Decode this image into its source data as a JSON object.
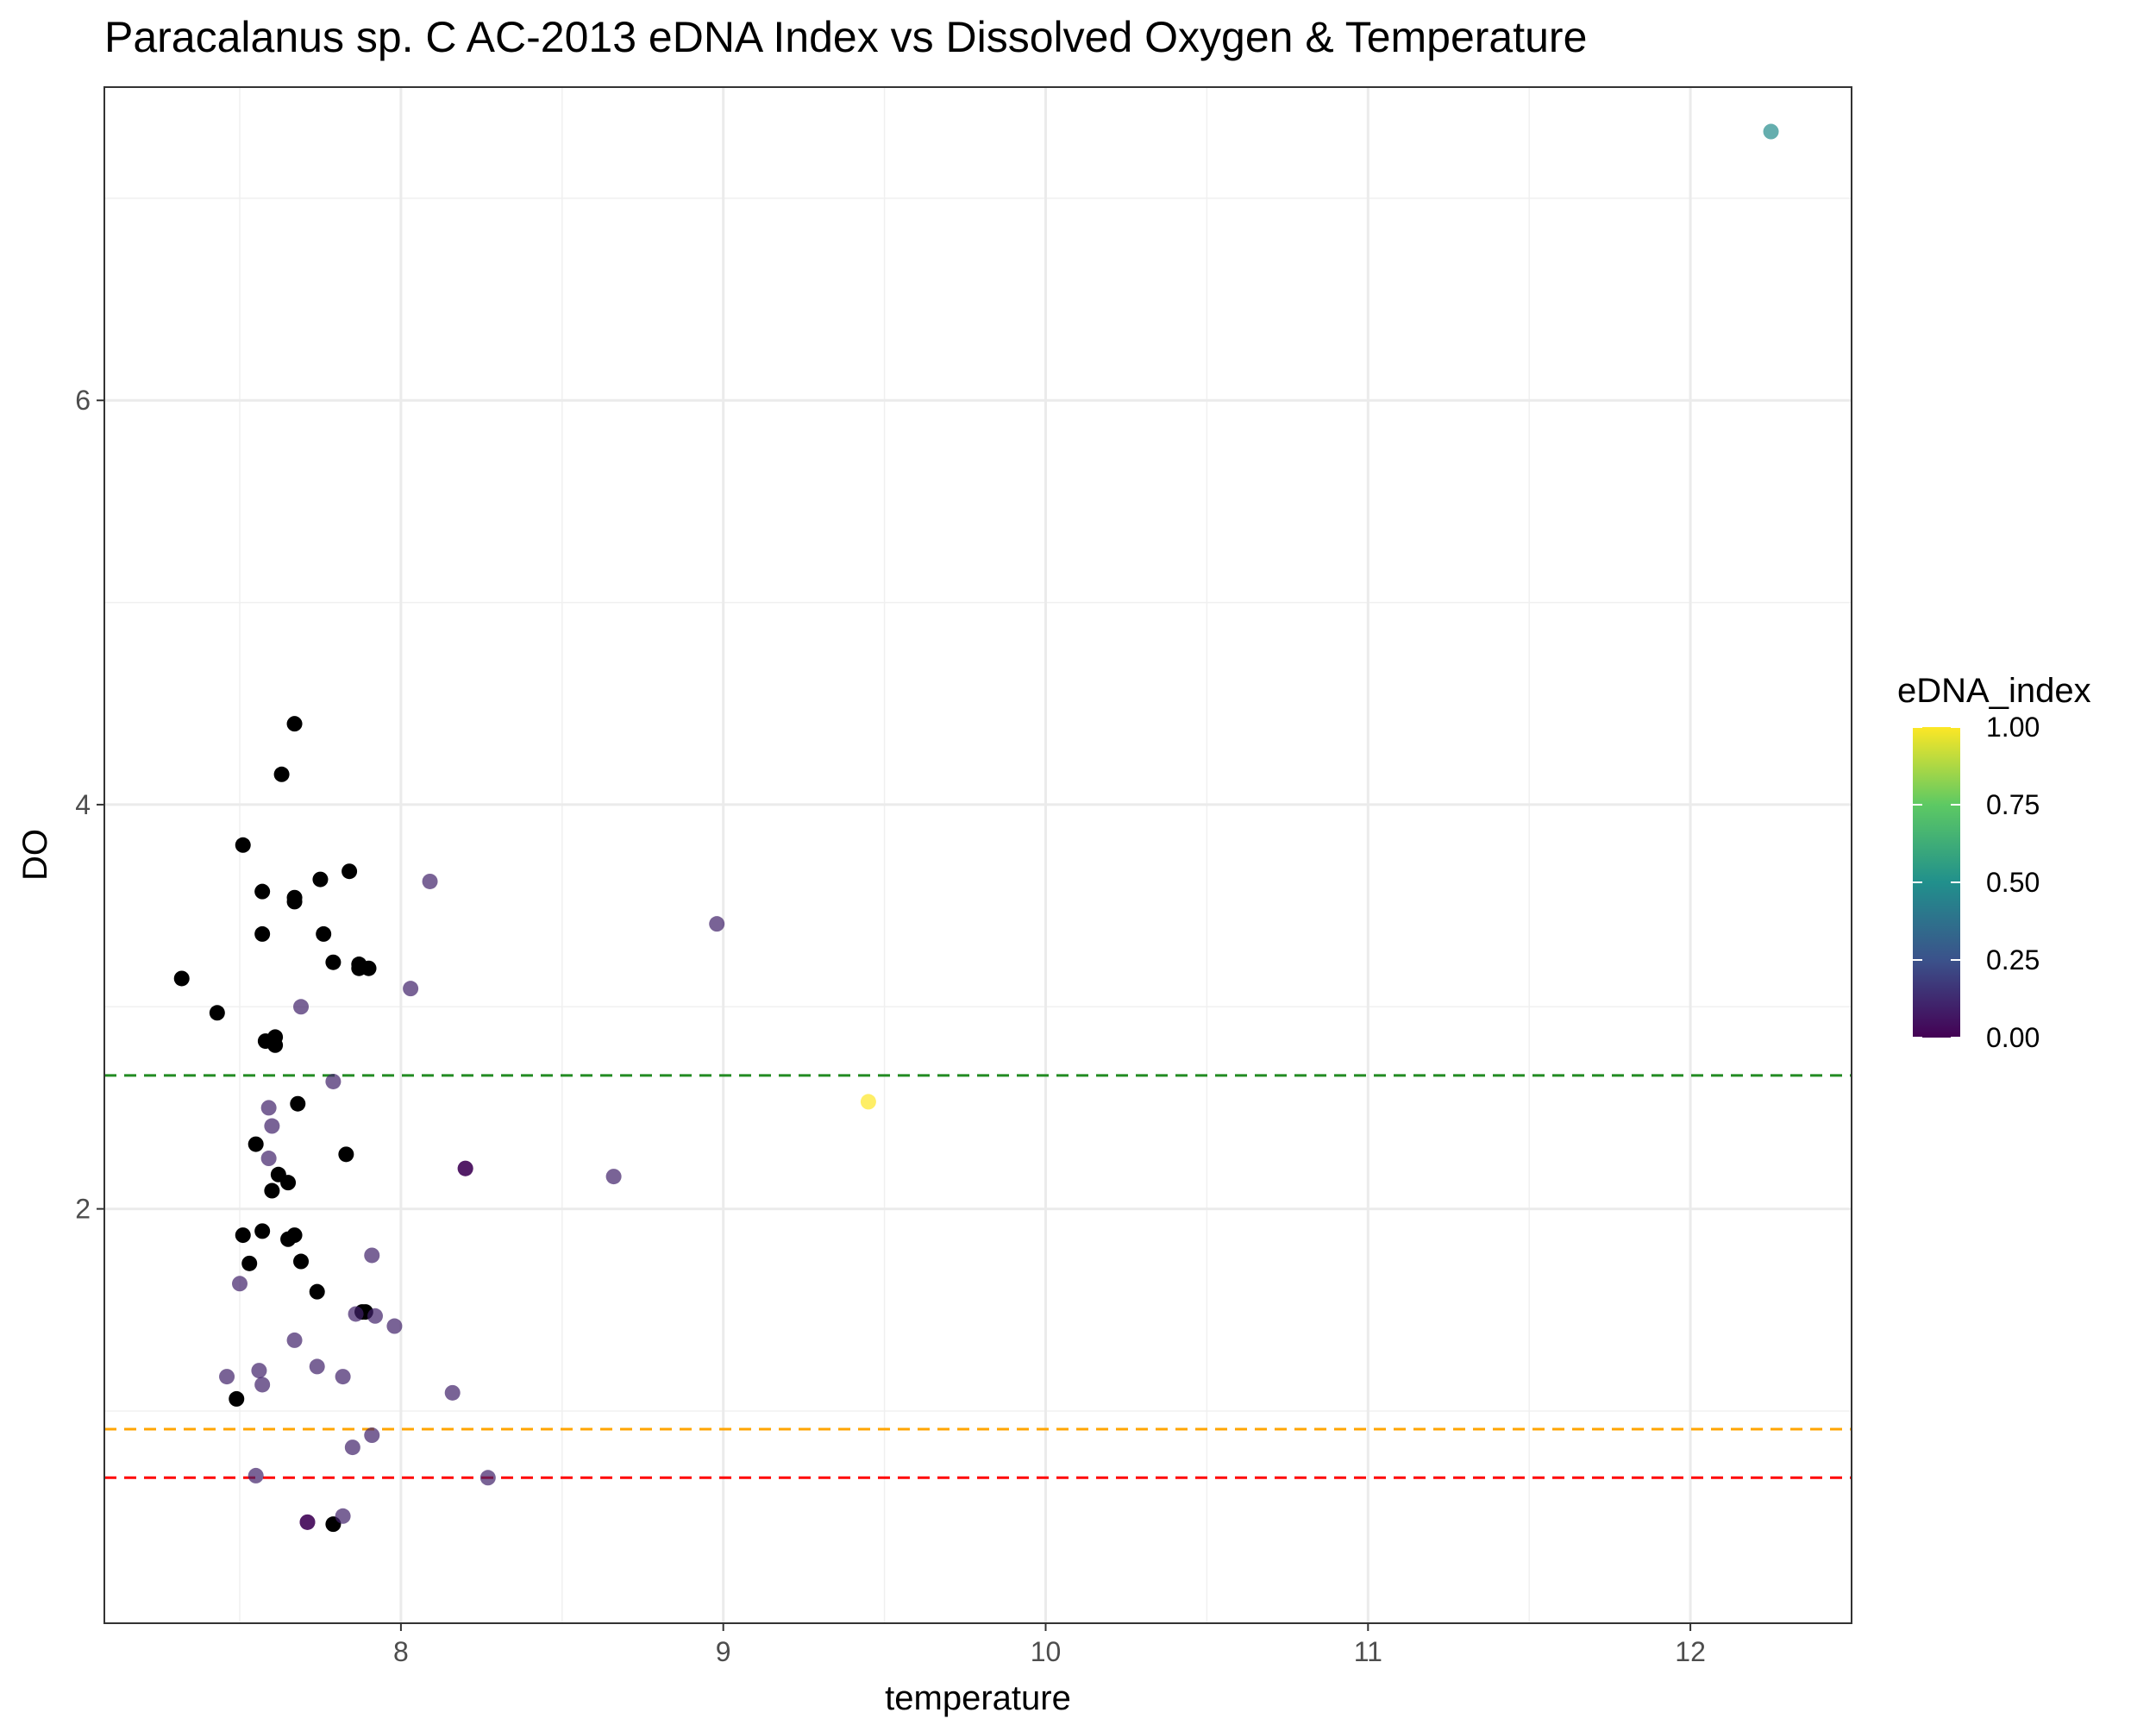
{
  "chart_data": {
    "type": "scatter",
    "title": "Paracalanus sp. C AC-2013 eDNA Index vs Dissolved Oxygen & Temperature",
    "xlabel": "temperature",
    "ylabel": "DO",
    "xlim": [
      7.08,
      12.5
    ],
    "ylim": [
      -0.05,
      7.55
    ],
    "x_ticks": [
      8,
      9,
      10,
      11,
      12
    ],
    "y_ticks": [
      2,
      4,
      6
    ],
    "x_tick_labels": [
      "8",
      "9",
      "10",
      "11",
      "12"
    ],
    "y_tick_labels": [
      "2",
      "4",
      "6"
    ],
    "grid": true,
    "legend": {
      "title": "eDNA_index",
      "position": "right",
      "type": "colorbar",
      "range": [
        0,
        1
      ],
      "ticks": [
        0,
        0.25,
        0.5,
        0.75,
        1
      ],
      "tick_labels": [
        "0.00",
        "0.25",
        "0.50",
        "0.75",
        "1.00"
      ],
      "colors": [
        "#440154",
        "#3b528b",
        "#21908c",
        "#5dc963",
        "#fde725"
      ]
    },
    "reference_lines": [
      {
        "y": 2.66,
        "color": "#228b22",
        "style": "dashed"
      },
      {
        "y": 0.91,
        "color": "#ffa500",
        "style": "dashed"
      },
      {
        "y": 0.67,
        "color": "#ff0000",
        "style": "dashed"
      }
    ],
    "missing_color": "#000000",
    "points": [
      {
        "x": 7.67,
        "y": 4.4,
        "v": null
      },
      {
        "x": 7.63,
        "y": 4.15,
        "v": null
      },
      {
        "x": 7.51,
        "y": 3.8,
        "v": null
      },
      {
        "x": 7.84,
        "y": 3.67,
        "v": null
      },
      {
        "x": 7.75,
        "y": 3.63,
        "v": null
      },
      {
        "x": 7.57,
        "y": 3.57,
        "v": null
      },
      {
        "x": 7.67,
        "y": 3.54,
        "v": null
      },
      {
        "x": 7.67,
        "y": 3.52,
        "v": null
      },
      {
        "x": 7.57,
        "y": 3.36,
        "v": null
      },
      {
        "x": 7.76,
        "y": 3.36,
        "v": null
      },
      {
        "x": 7.79,
        "y": 3.22,
        "v": null
      },
      {
        "x": 7.87,
        "y": 3.21,
        "v": null
      },
      {
        "x": 7.87,
        "y": 3.19,
        "v": null
      },
      {
        "x": 7.9,
        "y": 3.19,
        "v": null
      },
      {
        "x": 7.32,
        "y": 3.14,
        "v": null
      },
      {
        "x": 7.43,
        "y": 2.97,
        "v": null
      },
      {
        "x": 7.61,
        "y": 2.85,
        "v": null
      },
      {
        "x": 7.58,
        "y": 2.83,
        "v": null
      },
      {
        "x": 7.61,
        "y": 2.81,
        "v": null
      },
      {
        "x": 7.68,
        "y": 2.52,
        "v": null
      },
      {
        "x": 7.55,
        "y": 2.32,
        "v": null
      },
      {
        "x": 7.83,
        "y": 2.27,
        "v": null
      },
      {
        "x": 7.62,
        "y": 2.17,
        "v": null
      },
      {
        "x": 7.65,
        "y": 2.13,
        "v": null
      },
      {
        "x": 7.6,
        "y": 2.09,
        "v": null
      },
      {
        "x": 7.57,
        "y": 1.89,
        "v": null
      },
      {
        "x": 7.51,
        "y": 1.87,
        "v": null
      },
      {
        "x": 7.67,
        "y": 1.87,
        "v": null
      },
      {
        "x": 7.65,
        "y": 1.85,
        "v": null
      },
      {
        "x": 7.69,
        "y": 1.74,
        "v": null
      },
      {
        "x": 7.53,
        "y": 1.73,
        "v": null
      },
      {
        "x": 7.74,
        "y": 1.59,
        "v": null
      },
      {
        "x": 7.89,
        "y": 1.49,
        "v": null
      },
      {
        "x": 7.88,
        "y": 1.49,
        "v": null
      },
      {
        "x": 7.49,
        "y": 1.06,
        "v": null
      },
      {
        "x": 7.79,
        "y": 0.44,
        "v": null
      },
      {
        "x": 12.25,
        "y": 7.33,
        "v": 0.48
      },
      {
        "x": 9.45,
        "y": 2.53,
        "v": 1.0
      },
      {
        "x": 8.09,
        "y": 3.62,
        "v": 0.1
      },
      {
        "x": 8.98,
        "y": 3.41,
        "v": 0.1
      },
      {
        "x": 8.03,
        "y": 3.09,
        "v": 0.1
      },
      {
        "x": 7.69,
        "y": 3.0,
        "v": 0.1
      },
      {
        "x": 7.79,
        "y": 2.63,
        "v": 0.1
      },
      {
        "x": 7.59,
        "y": 2.5,
        "v": 0.1
      },
      {
        "x": 7.6,
        "y": 2.41,
        "v": 0.1
      },
      {
        "x": 7.59,
        "y": 2.25,
        "v": 0.1
      },
      {
        "x": 8.2,
        "y": 2.2,
        "v": 0.02
      },
      {
        "x": 8.2,
        "y": 2.2,
        "v": 0.02
      },
      {
        "x": 8.66,
        "y": 2.16,
        "v": 0.1
      },
      {
        "x": 7.91,
        "y": 1.77,
        "v": 0.1
      },
      {
        "x": 7.5,
        "y": 1.63,
        "v": 0.1
      },
      {
        "x": 7.86,
        "y": 1.48,
        "v": 0.1
      },
      {
        "x": 7.92,
        "y": 1.47,
        "v": 0.1
      },
      {
        "x": 7.98,
        "y": 1.42,
        "v": 0.1
      },
      {
        "x": 7.67,
        "y": 1.35,
        "v": 0.1
      },
      {
        "x": 7.74,
        "y": 1.22,
        "v": 0.1
      },
      {
        "x": 7.56,
        "y": 1.2,
        "v": 0.1
      },
      {
        "x": 7.46,
        "y": 1.17,
        "v": 0.1
      },
      {
        "x": 7.82,
        "y": 1.17,
        "v": 0.1
      },
      {
        "x": 7.57,
        "y": 1.13,
        "v": 0.1
      },
      {
        "x": 8.16,
        "y": 1.09,
        "v": 0.1
      },
      {
        "x": 7.91,
        "y": 0.88,
        "v": 0.1
      },
      {
        "x": 7.85,
        "y": 0.82,
        "v": 0.1
      },
      {
        "x": 7.55,
        "y": 0.68,
        "v": 0.1
      },
      {
        "x": 8.27,
        "y": 0.67,
        "v": 0.1
      },
      {
        "x": 7.82,
        "y": 0.48,
        "v": 0.1
      },
      {
        "x": 7.71,
        "y": 0.45,
        "v": 0.02
      },
      {
        "x": 7.71,
        "y": 0.45,
        "v": 0.02
      }
    ]
  }
}
